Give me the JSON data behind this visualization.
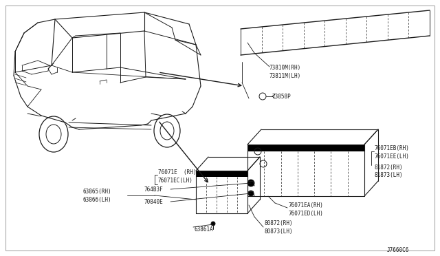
{
  "bg_color": "#ffffff",
  "lc": "#1a1a1a",
  "diagram_code": "J7660C6",
  "fs": 5.5,
  "labels": {
    "strip_rh": "73810M(RH)",
    "strip_lh": "73811M(LH)",
    "strip_clip": "73858P",
    "mid_top_rh": "76071EB(RH)",
    "mid_top_lh": "76071EE(LH)",
    "mid_top2_rh": "81872(RH)",
    "mid_top2_lh": "81873(LH)",
    "mid_side_rh": "76071EA(RH)",
    "mid_side_lh": "76071ED(LH)",
    "mid_bot_rh": "80872(RH)",
    "mid_bot_lh": "80873(LH)",
    "sm_top_rh": "76071E  (RH)",
    "sm_top_lh": "76071EC(LH)",
    "sm_left_rh": "63865(RH)",
    "sm_left_lh": "63866(LH)",
    "sm_mid1": "764B3F",
    "sm_mid2": "70840E",
    "sm_screw": "63861A"
  }
}
